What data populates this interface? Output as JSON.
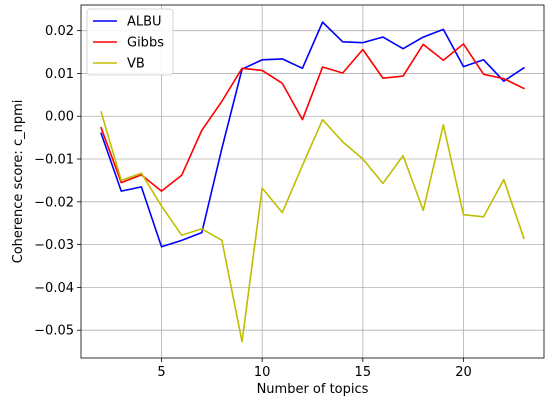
{
  "chart_data": {
    "type": "line",
    "title": "",
    "xlabel": "Number of topics",
    "ylabel": "Coherence score: c_npmi",
    "xlim": [
      1.0,
      24.0
    ],
    "ylim": [
      -0.0565,
      0.026
    ],
    "grid": true,
    "legend_position": "top-left",
    "x": [
      2,
      3,
      4,
      5,
      6,
      7,
      8,
      9,
      10,
      11,
      12,
      13,
      14,
      15,
      16,
      17,
      18,
      19,
      20,
      21,
      22,
      23
    ],
    "x_ticks": [
      5,
      10,
      15,
      20
    ],
    "x_tick_labels": [
      "5",
      "10",
      "15",
      "20"
    ],
    "y_ticks": [
      -0.05,
      -0.04,
      -0.03,
      -0.02,
      -0.01,
      0.0,
      0.01,
      0.02
    ],
    "y_tick_labels": [
      "−0.05",
      "−0.04",
      "−0.03",
      "−0.02",
      "−0.01",
      "0.00",
      "0.01",
      "0.02"
    ],
    "series": [
      {
        "name": "ALBU",
        "color": "#0000ff",
        "values": [
          -0.004,
          -0.0175,
          -0.0165,
          -0.0305,
          -0.029,
          -0.0272,
          -0.0075,
          0.011,
          0.0132,
          0.0134,
          0.0112,
          0.022,
          0.0174,
          0.0172,
          0.0185,
          0.0158,
          0.0185,
          0.0203,
          0.0116,
          0.0132,
          0.0082,
          0.0113
        ]
      },
      {
        "name": "Gibbs",
        "color": "#ff0000",
        "values": [
          -0.0027,
          -0.0155,
          -0.0137,
          -0.0175,
          -0.0138,
          -0.0033,
          0.0035,
          0.0112,
          0.0107,
          0.0077,
          -0.0008,
          0.0115,
          0.0101,
          0.0156,
          0.0089,
          0.0094,
          0.0168,
          0.0131,
          0.0169,
          0.0098,
          0.0088,
          0.0065
        ]
      },
      {
        "name": "VB",
        "color": "#bfbf00",
        "values": [
          0.001,
          -0.015,
          -0.0133,
          -0.021,
          -0.0278,
          -0.0263,
          -0.029,
          -0.0527,
          -0.0168,
          -0.0225,
          -0.0115,
          -0.0008,
          -0.006,
          -0.01,
          -0.0157,
          -0.0092,
          -0.022,
          -0.002,
          -0.023,
          -0.0235,
          -0.0148,
          -0.0285
        ]
      }
    ]
  }
}
